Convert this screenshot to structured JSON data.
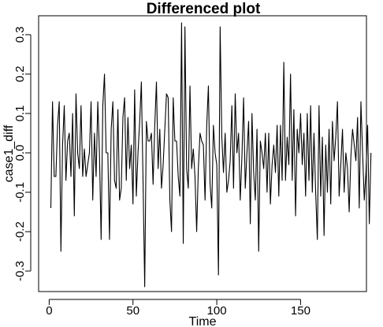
{
  "chart_data": {
    "type": "line",
    "title": "Differenced plot",
    "xlabel": "Time",
    "ylabel": "case1_diff",
    "xlim": [
      -6.3,
      189.3
    ],
    "ylim": [
      -0.352,
      0.348
    ],
    "x_ticks": [
      0,
      50,
      100,
      150
    ],
    "y_ticks": [
      -0.3,
      -0.2,
      -0.1,
      0.0,
      0.1,
      0.2,
      0.3
    ],
    "x_tick_labels": [
      "0",
      "50",
      "100",
      "150"
    ],
    "y_tick_labels": [
      "-0.3",
      "-0.2",
      "-0.1",
      "0.0",
      "0.1",
      "0.2",
      "0.3"
    ],
    "grid": false,
    "line_color": "#000000",
    "series": [
      {
        "x_start": 1,
        "x_step": 1,
        "values": [
          -0.14,
          0.13,
          -0.06,
          -0.06,
          0.07,
          0.13,
          -0.25,
          0.02,
          0.12,
          -0.07,
          0.03,
          0.05,
          -0.06,
          0.1,
          -0.16,
          0.15,
          0.0,
          -0.04,
          0.12,
          -0.06,
          0.01,
          -0.06,
          -0.03,
          0.0,
          0.13,
          -0.12,
          0.05,
          -0.06,
          0.13,
          0.0,
          -0.22,
          0.12,
          0.2,
          0.0,
          0.0,
          -0.22,
          0.06,
          0.13,
          -0.07,
          -0.09,
          0.11,
          -0.12,
          -0.09,
          0.09,
          0.14,
          -0.07,
          0.09,
          -0.04,
          0.02,
          -0.13,
          0.16,
          -0.11,
          0.0,
          0.08,
          0.18,
          -0.07,
          -0.34,
          0.08,
          0.03,
          0.03,
          0.05,
          -0.08,
          0.07,
          0.18,
          -0.04,
          0.06,
          -0.09,
          -0.03,
          0.06,
          0.15,
          0.14,
          -0.12,
          -0.2,
          0.14,
          0.03,
          0.03,
          -0.06,
          -0.11,
          0.33,
          -0.23,
          0.32,
          -0.04,
          -0.09,
          0.17,
          -0.04,
          0.01,
          -0.06,
          -0.2,
          -0.04,
          0.05,
          0.03,
          0.02,
          -0.12,
          0.07,
          0.17,
          -0.08,
          -0.14,
          0.07,
          0.0,
          -0.03,
          -0.31,
          0.32,
          0.04,
          -0.05,
          0.05,
          -0.1,
          -0.07,
          -0.02,
          0.12,
          -0.09,
          0.15,
          0.0,
          0.05,
          -0.12,
          -0.01,
          0.14,
          -0.09,
          0.0,
          0.08,
          -0.18,
          0.1,
          -0.05,
          -0.12,
          0.06,
          -0.25,
          0.03,
          0.0,
          -0.04,
          0.05,
          -0.1,
          0.05,
          -0.13,
          -0.03,
          0.02,
          -0.05,
          0.07,
          -0.11,
          0.07,
          -0.07,
          0.23,
          -0.07,
          0.04,
          -0.03,
          0.2,
          -0.07,
          0.11,
          -0.16,
          0.06,
          0.0,
          0.1,
          -0.03,
          0.05,
          -0.11,
          0.1,
          -0.07,
          0.12,
          -0.1,
          0.05,
          -0.1,
          -0.22,
          0.12,
          -0.11,
          0.04,
          -0.21,
          0.02,
          -0.1,
          0.06,
          -0.13,
          0.08,
          -0.02,
          0.04,
          0.13,
          -0.11,
          -0.03,
          0.06,
          -0.1,
          0.0,
          -0.04,
          -0.15,
          -0.01,
          0.06,
          0.02,
          -0.02,
          0.09,
          -0.14,
          0.13,
          0.0,
          -0.12,
          -0.05,
          0.07,
          -0.18,
          0.0
        ]
      }
    ]
  }
}
